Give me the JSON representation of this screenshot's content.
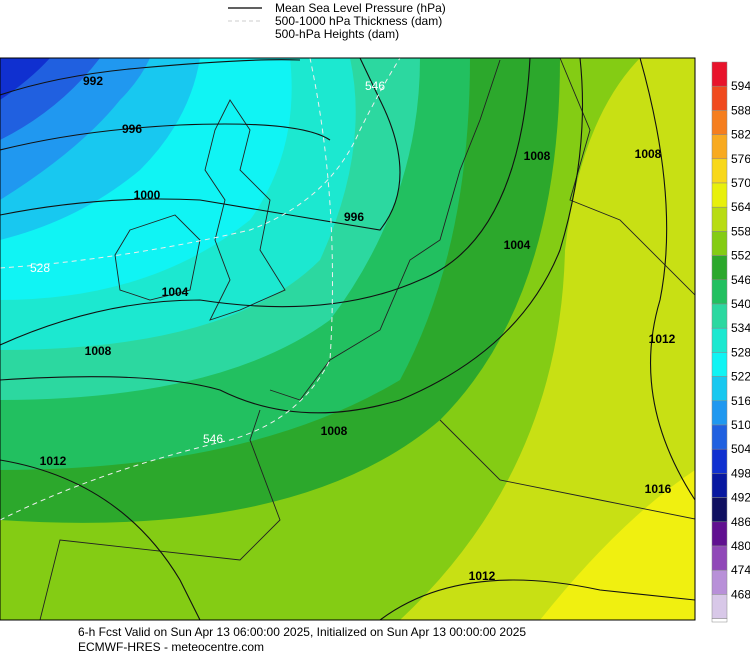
{
  "legend": {
    "items": [
      "Mean Sea Level Pressure (hPa)",
      "500-1000 hPa Thickness (dam)",
      "500-hPa Heights (dam)"
    ]
  },
  "colorbar": {
    "labels": [
      594,
      588,
      582,
      576,
      570,
      564,
      558,
      552,
      546,
      540,
      534,
      528,
      522,
      516,
      510,
      504,
      498,
      492,
      486,
      480,
      474,
      468
    ],
    "colors": [
      "#e8142c",
      "#f04a1e",
      "#f57e1e",
      "#f8aa20",
      "#f8d81a",
      "#e8f00c",
      "#b8dc14",
      "#84cc14",
      "#2ca82c",
      "#22c060",
      "#2cd8a0",
      "#1ce8d0",
      "#10f4f4",
      "#18c8f0",
      "#2098f0",
      "#2060e0",
      "#1030d0",
      "#0818a0",
      "#101060",
      "#601090",
      "#9048b8",
      "#b890d8",
      "#d8c8e8"
    ]
  },
  "map": {
    "isobar_labels": [
      "992",
      "996",
      "1000",
      "1004",
      "1008",
      "1012",
      "996",
      "1004",
      "1008",
      "1008",
      "1012",
      "1012",
      "1016",
      "1008"
    ],
    "thickness_labels": [
      "528",
      "546",
      "546"
    ]
  },
  "footer": {
    "line1": "6-h Fcst Valid on Sun Apr 13 06:00:00 2025, Initialized on Sun Apr 13 00:00:00 2025",
    "line2": "ECMWF-HRES  - meteocentre.com"
  }
}
